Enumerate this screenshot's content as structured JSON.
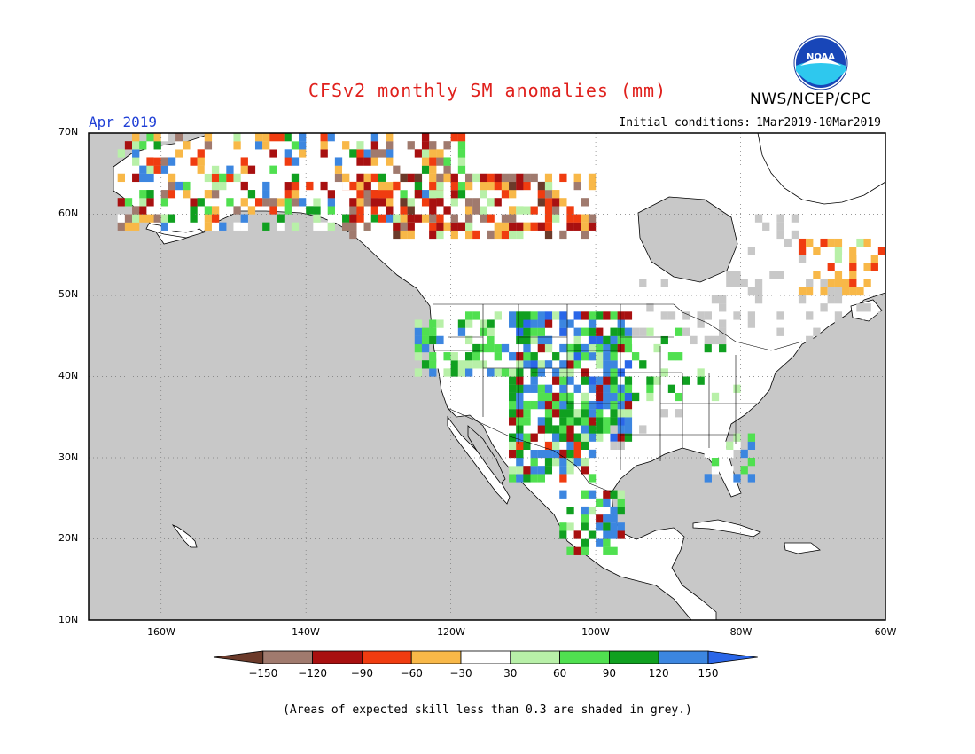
{
  "header": {
    "title": "CFSv2 monthly SM anomalies (mm)",
    "org": "NWS/NCEP/CPC",
    "logo_text": "NOAA",
    "month": "Apr 2019",
    "init_label": "Initial conditions:",
    "init_range": "1Mar2019-10Mar2019"
  },
  "map": {
    "lon_range": [
      -170,
      -60
    ],
    "lat_range": [
      10,
      70
    ],
    "lat_labels": [
      "70N",
      "60N",
      "50N",
      "40N",
      "30N",
      "20N",
      "10N"
    ],
    "lon_labels": [
      "160W",
      "140W",
      "120W",
      "100W",
      "80W",
      "60W"
    ],
    "ocean_color": "#c8c8c8",
    "land_color": "#ffffff",
    "low_skill_color": "#c8c8c8"
  },
  "legend": {
    "ticks": [
      "−150",
      "−120",
      "−90",
      "−60",
      "−30",
      "30",
      "60",
      "90",
      "120",
      "150"
    ],
    "colors": [
      "#6b3a2a",
      "#a07a6e",
      "#a81010",
      "#f03c10",
      "#f8b848",
      "#ffffff",
      "#b8f0a8",
      "#50e050",
      "#10a020",
      "#3c86e0",
      "#2a66e8"
    ]
  },
  "footnote": "(Areas of expected skill less than 0.3 are shaded in grey.)"
}
